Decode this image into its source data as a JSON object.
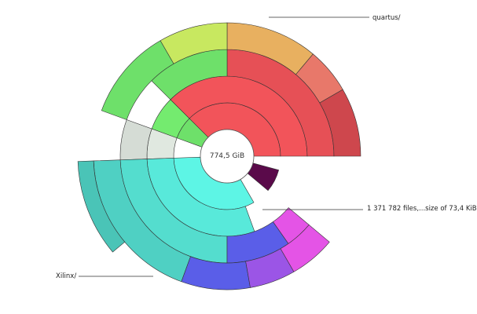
{
  "center": {
    "total": "774,5 GiB"
  },
  "labels": {
    "quartus": "quartus/",
    "files": "1 371 782 files,...size of 73,4 KiB",
    "xilinx": "Xilinx/"
  },
  "colors": {
    "red": "#f2545a",
    "green": "#6ee06a",
    "cyan": "#5df5e5",
    "blue": "#5a5ee8",
    "purple": "#9b55e6",
    "magenta": "#e454e6",
    "darkpurple": "#5a0a4a",
    "grey": "#e0e8e0",
    "yellowgreen": "#c8e860",
    "orange": "#e8b060",
    "salmon": "#e8786a"
  }
}
